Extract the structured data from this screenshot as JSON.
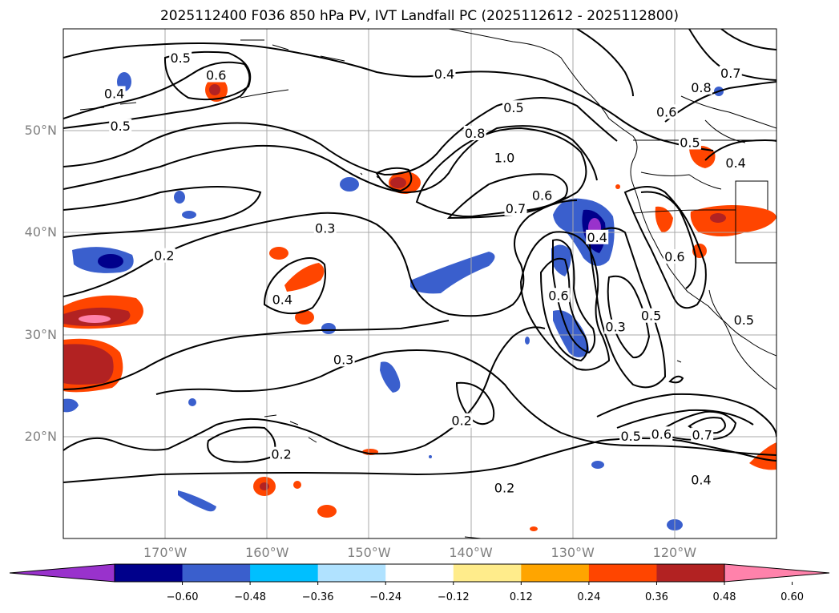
{
  "title": "2025112400 F036 850 hPa PV, IVT Landfall PC (2025112612 - 2025112800)",
  "map": {
    "lon_range": [
      -180,
      -110
    ],
    "lat_range": [
      10,
      60
    ],
    "lat_ticks": [
      {
        "value": 20,
        "label": "20°N"
      },
      {
        "value": 30,
        "label": "30°N"
      },
      {
        "value": 40,
        "label": "40°N"
      },
      {
        "value": 50,
        "label": "50°N"
      }
    ],
    "lon_ticks": [
      {
        "value": -170,
        "label": "170°W"
      },
      {
        "value": -160,
        "label": "160°W"
      },
      {
        "value": -150,
        "label": "150°W"
      },
      {
        "value": -140,
        "label": "140°W"
      },
      {
        "value": -130,
        "label": "130°W"
      },
      {
        "value": -120,
        "label": "120°W"
      }
    ],
    "gridlines": true,
    "contour_labels": [
      {
        "text": "0.5",
        "lon": -168.5,
        "lat": 57.1
      },
      {
        "text": "0.6",
        "lon": -165,
        "lat": 55.4
      },
      {
        "text": "0.4",
        "lon": -175,
        "lat": 53.6
      },
      {
        "text": "0.5",
        "lon": -174.4,
        "lat": 50.4
      },
      {
        "text": "0.4",
        "lon": -142.6,
        "lat": 55.5
      },
      {
        "text": "0.5",
        "lon": -135.8,
        "lat": 52.2
      },
      {
        "text": "0.6",
        "lon": -120.8,
        "lat": 51.8
      },
      {
        "text": "0.7",
        "lon": -114.5,
        "lat": 55.6
      },
      {
        "text": "0.8",
        "lon": -117.4,
        "lat": 54.2
      },
      {
        "text": "0.8",
        "lon": -139.6,
        "lat": 49.7
      },
      {
        "text": "1.0",
        "lon": -136.7,
        "lat": 47.3
      },
      {
        "text": "0.7",
        "lon": -135.6,
        "lat": 42.3
      },
      {
        "text": "0.6",
        "lon": -133,
        "lat": 43.6
      },
      {
        "text": "0.5",
        "lon": -118.5,
        "lat": 48.8
      },
      {
        "text": "0.4",
        "lon": -114,
        "lat": 46.8
      },
      {
        "text": "0.3",
        "lon": -154.3,
        "lat": 40.4
      },
      {
        "text": "0.2",
        "lon": -170.1,
        "lat": 37.7
      },
      {
        "text": "0.4",
        "lon": -158.5,
        "lat": 33.4
      },
      {
        "text": "0.4",
        "lon": -127.6,
        "lat": 39.5
      },
      {
        "text": "0.6",
        "lon": -120,
        "lat": 37.6
      },
      {
        "text": "0.6",
        "lon": -131.4,
        "lat": 33.8
      },
      {
        "text": "0.5",
        "lon": -122.3,
        "lat": 31.8
      },
      {
        "text": "0.5",
        "lon": -113.2,
        "lat": 31.4
      },
      {
        "text": "0.3",
        "lon": -125.8,
        "lat": 30.7
      },
      {
        "text": "0.3",
        "lon": -152.5,
        "lat": 27.5
      },
      {
        "text": "0.2",
        "lon": -140.9,
        "lat": 21.5
      },
      {
        "text": "0.5",
        "lon": -124.3,
        "lat": 20
      },
      {
        "text": "0.6",
        "lon": -121.3,
        "lat": 20.2
      },
      {
        "text": "0.7",
        "lon": -117.3,
        "lat": 20.1
      },
      {
        "text": "0.4",
        "lon": -117.4,
        "lat": 15.7
      },
      {
        "text": "0.2",
        "lon": -158.6,
        "lat": 18.2
      },
      {
        "text": "0.2",
        "lon": -136.7,
        "lat": 14.9
      }
    ]
  },
  "colorbar": {
    "colors": [
      "#9932cc",
      "#00008b",
      "#3a5fcd",
      "#00bfff",
      "#b0e2ff",
      "#ffffff",
      "#ffec8b",
      "#ffa500",
      "#ff4500",
      "#b22222",
      "#ff82ab"
    ],
    "tick_labels": [
      "−0.60",
      "−0.48",
      "−0.36",
      "−0.24",
      "−0.12",
      "0.12",
      "0.24",
      "0.36",
      "0.48",
      "0.60"
    ],
    "extend": "both"
  }
}
